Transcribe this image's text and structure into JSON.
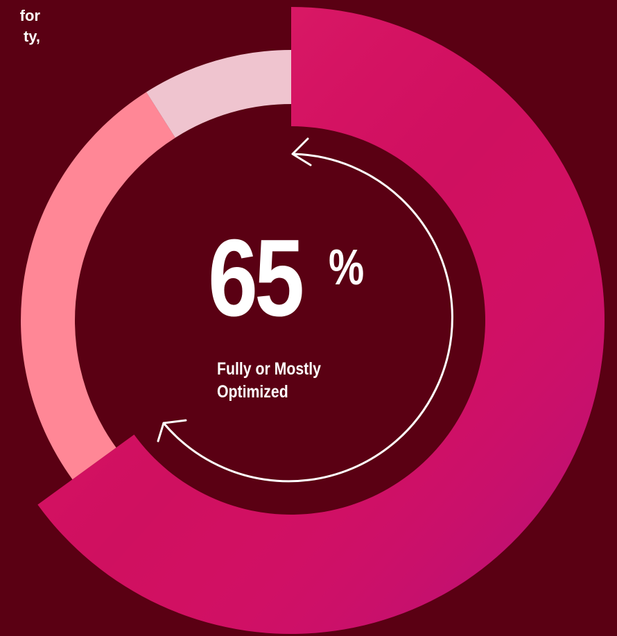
{
  "chart_data": {
    "type": "donut",
    "intro_text_lines": [
      "for",
      "ty,"
    ],
    "values": [
      65,
      26,
      9
    ],
    "colors": [
      "#cf1060",
      "#ff8796",
      "#efc4cf"
    ],
    "exploded": [
      true,
      false,
      false
    ],
    "center_value": "65",
    "center_unit": "%",
    "center_label": "Fully or Mostly Optimized"
  }
}
